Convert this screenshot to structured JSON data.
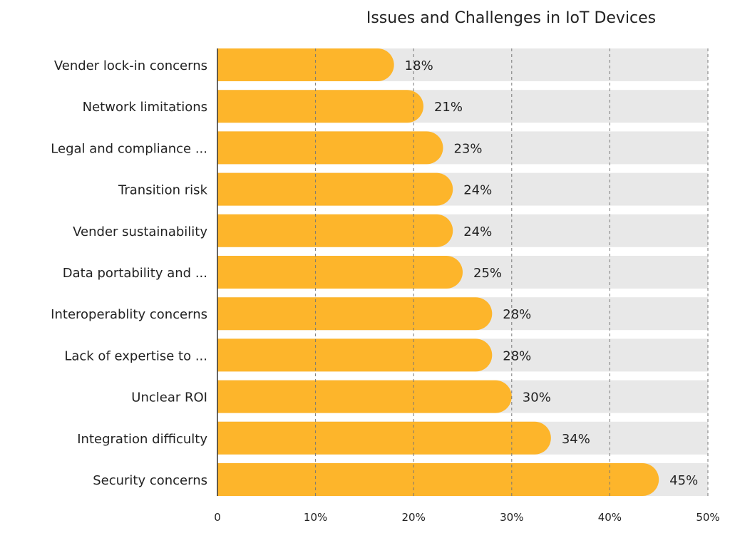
{
  "chart_data": {
    "type": "bar",
    "orientation": "horizontal",
    "title": "Issues and Challenges in IoT Devices",
    "xlabel": "",
    "ylabel": "",
    "xlim": [
      0,
      50
    ],
    "x_ticks": [
      0,
      10,
      20,
      30,
      40,
      50
    ],
    "x_tick_labels": [
      "0",
      "10%",
      "20%",
      "30%",
      "40%",
      "50%"
    ],
    "grid": true,
    "categories": [
      "Vender lock-in concerns",
      "Network limitations",
      "Legal and compliance ...",
      "Transition risk",
      "Vender sustainability",
      "Data portability and ...",
      "Interoperablity concerns",
      "Lack of expertise to ...",
      "Unclear ROI",
      "Integration difficulty",
      "Security concerns"
    ],
    "values": [
      18,
      21,
      23,
      24,
      24,
      25,
      28,
      28,
      30,
      34,
      45
    ],
    "value_labels": [
      "18%",
      "21%",
      "23%",
      "24%",
      "24%",
      "25%",
      "28%",
      "28%",
      "30%",
      "34%",
      "45%"
    ],
    "colors": {
      "bar": "#FDB52B",
      "track": "#E8E8E8",
      "grid": "#777777",
      "text": "#222222"
    }
  }
}
